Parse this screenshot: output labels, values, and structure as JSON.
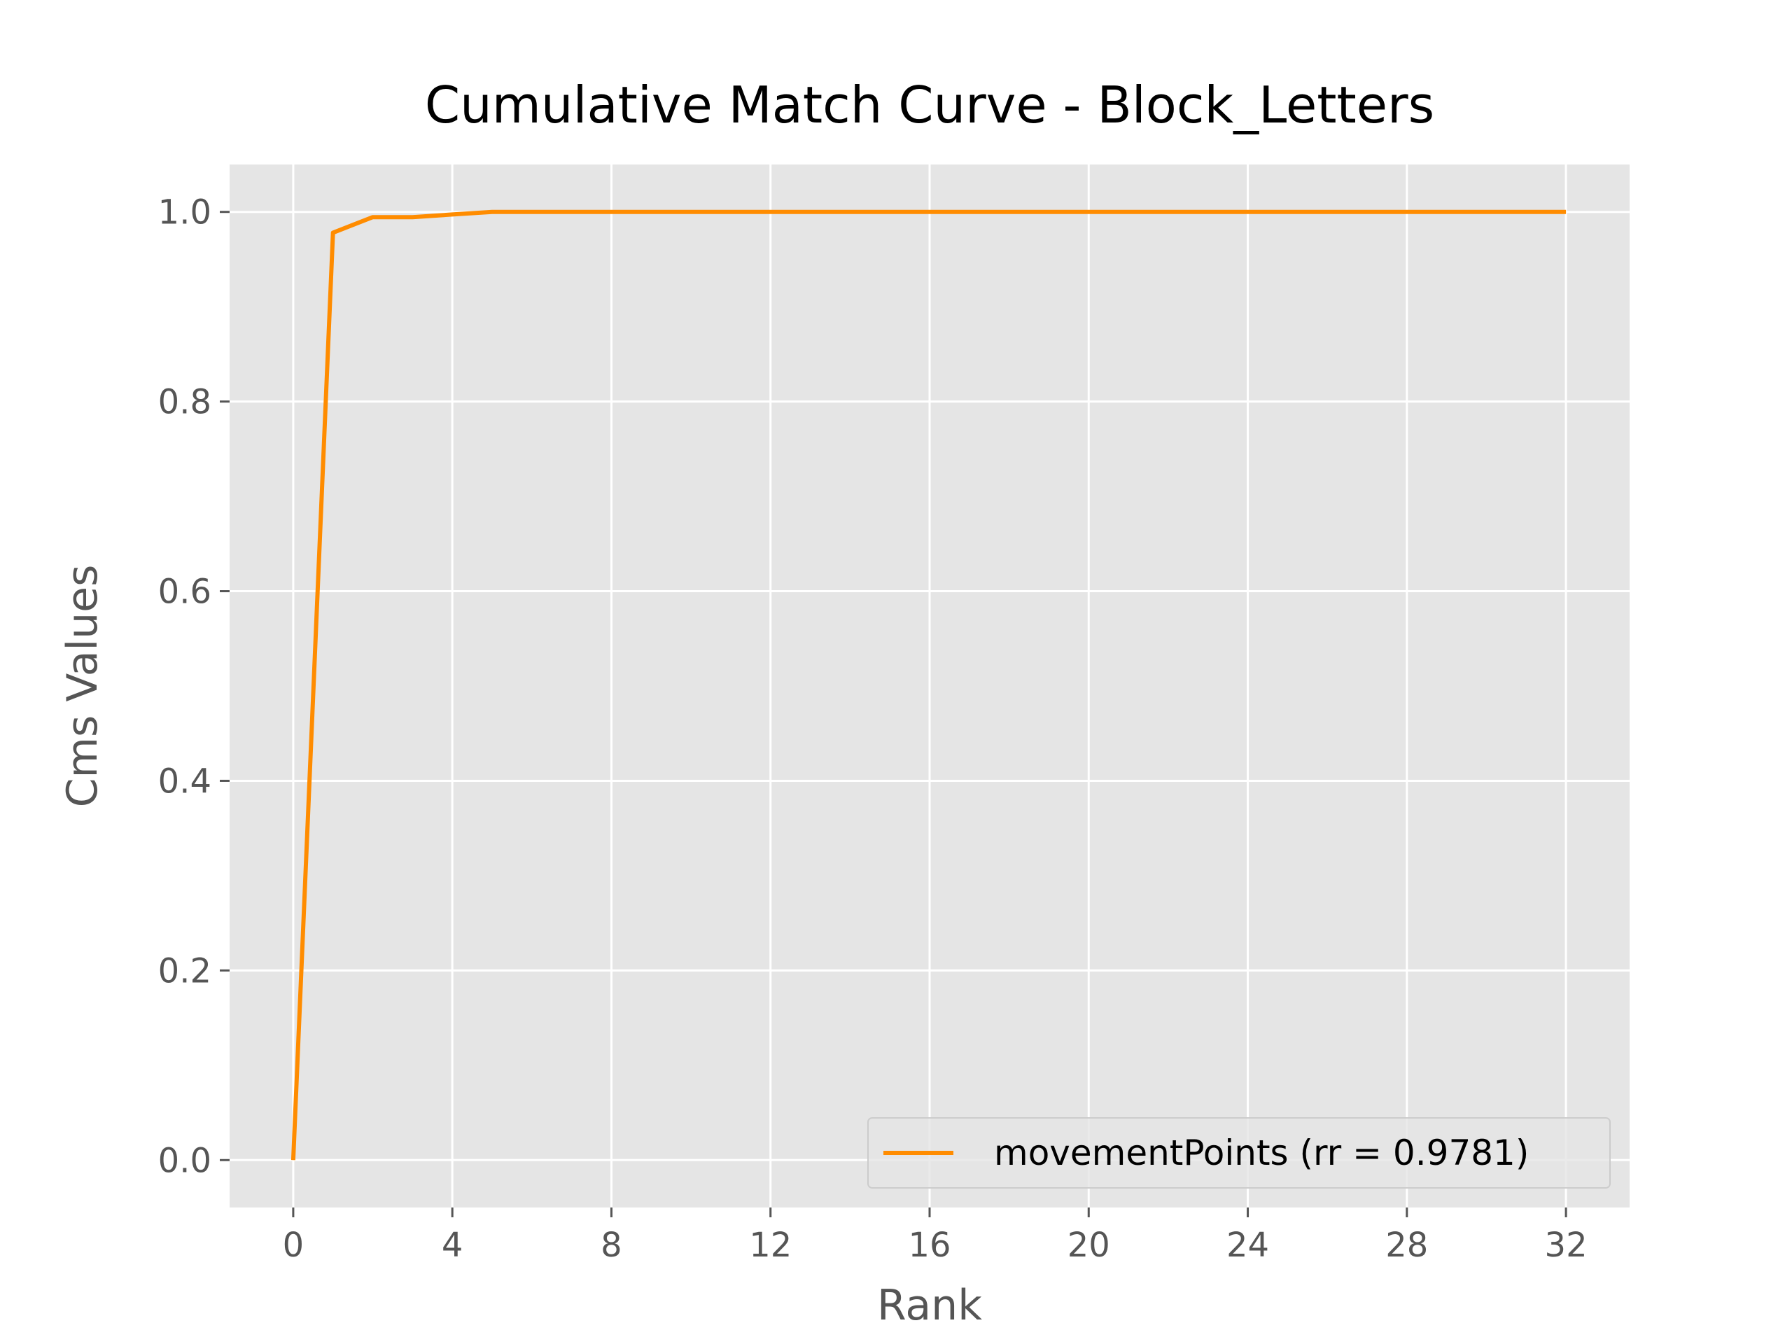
{
  "chart_data": {
    "type": "line",
    "title": "Cumulative Match Curve - Block_Letters",
    "xlabel": "Rank",
    "ylabel": "Cms Values",
    "xlim": [
      -1.6,
      33.6
    ],
    "ylim": [
      -0.05,
      1.05
    ],
    "xticks": [
      0,
      4,
      8,
      12,
      16,
      20,
      24,
      28,
      32
    ],
    "xtick_labels": [
      "0",
      "4",
      "8",
      "12",
      "16",
      "20",
      "24",
      "28",
      "32"
    ],
    "yticks": [
      0.0,
      0.2,
      0.4,
      0.6,
      0.8,
      1.0
    ],
    "ytick_labels": [
      "0.0",
      "0.2",
      "0.4",
      "0.6",
      "0.8",
      "1.0"
    ],
    "grid": true,
    "legend_position": "lower-right",
    "colors": {
      "background": "#e5e5e5",
      "grid": "#ffffff",
      "line": "#ff8c00",
      "tick": "#555555"
    },
    "series": [
      {
        "name": "movementPoints (rr = 0.9781)",
        "x": [
          0,
          1,
          2,
          3,
          4,
          5,
          6,
          7,
          8,
          9,
          10,
          11,
          12,
          13,
          14,
          15,
          16,
          17,
          18,
          19,
          20,
          21,
          22,
          23,
          24,
          25,
          26,
          27,
          28,
          29,
          30,
          31,
          32
        ],
        "y": [
          0.0,
          0.9781,
          0.9945,
          0.9945,
          0.9973,
          1.0,
          1.0,
          1.0,
          1.0,
          1.0,
          1.0,
          1.0,
          1.0,
          1.0,
          1.0,
          1.0,
          1.0,
          1.0,
          1.0,
          1.0,
          1.0,
          1.0,
          1.0,
          1.0,
          1.0,
          1.0,
          1.0,
          1.0,
          1.0,
          1.0,
          1.0,
          1.0,
          1.0
        ]
      }
    ]
  }
}
